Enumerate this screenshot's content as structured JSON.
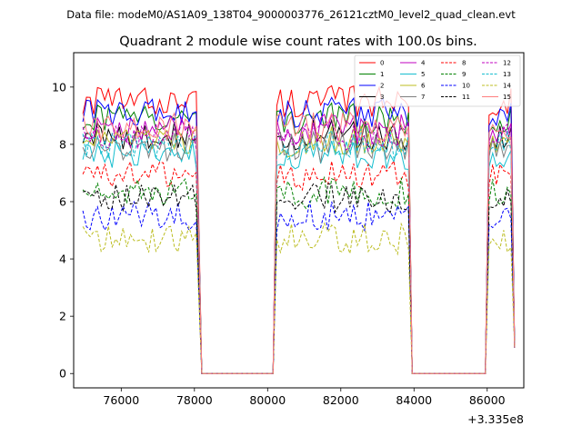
{
  "figure": {
    "suptitle": "Data file: modeM0/AS1A09_138T04_9000003776_26121cztM0_level2_quad_clean.evt",
    "offset_label": "+3.335e8"
  },
  "chart_data": {
    "type": "line",
    "title": "Quadrant 2 module wise count rates with 100.0s bins.",
    "xlabel": "",
    "ylabel": "",
    "x_offset": 333500000,
    "xlim": [
      74700,
      87000
    ],
    "ylim": [
      -0.5,
      11.2
    ],
    "x_ticks": [
      76000,
      78000,
      80000,
      82000,
      84000,
      86000
    ],
    "y_ticks": [
      0,
      2,
      4,
      6,
      8,
      10
    ],
    "x_tick_labels": [
      "76000",
      "78000",
      "80000",
      "82000",
      "84000",
      "86000"
    ],
    "y_tick_labels": [
      "0",
      "2",
      "4",
      "6",
      "8",
      "10"
    ],
    "grid": false,
    "legend_position": "top-right",
    "active_segments": [
      [
        74950,
        78050
      ],
      [
        80250,
        83850
      ],
      [
        86050,
        86750
      ]
    ],
    "gap_x": [
      78200,
      80150,
      83950,
      85950
    ],
    "series": [
      {
        "name": "0",
        "color": "#ff0000",
        "dash": "solid",
        "level": 9.5
      },
      {
        "name": "1",
        "color": "#008000",
        "dash": "solid",
        "level": 8.9
      },
      {
        "name": "2",
        "color": "#0000ff",
        "dash": "solid",
        "level": 9.1
      },
      {
        "name": "3",
        "color": "#000000",
        "dash": "solid",
        "level": 8.3
      },
      {
        "name": "4",
        "color": "#bf00bf",
        "dash": "solid",
        "level": 8.5
      },
      {
        "name": "5",
        "color": "#17becf",
        "dash": "solid",
        "level": 7.6
      },
      {
        "name": "6",
        "color": "#bcbd22",
        "dash": "solid",
        "level": 8.1
      },
      {
        "name": "7",
        "color": "#7f7f7f",
        "dash": "solid",
        "level": 7.9
      },
      {
        "name": "8",
        "color": "#ff0000",
        "dash": "dashed",
        "level": 6.9
      },
      {
        "name": "9",
        "color": "#008000",
        "dash": "dashed",
        "level": 6.3
      },
      {
        "name": "10",
        "color": "#0000ff",
        "dash": "dashed",
        "level": 5.5
      },
      {
        "name": "11",
        "color": "#000000",
        "dash": "dashed",
        "level": 6.1
      },
      {
        "name": "12",
        "color": "#bf00bf",
        "dash": "dashed",
        "level": 8.3
      },
      {
        "name": "13",
        "color": "#17becf",
        "dash": "dashed",
        "level": 8.0
      },
      {
        "name": "14",
        "color": "#bcbd22",
        "dash": "dashed",
        "level": 4.7
      },
      {
        "name": "15",
        "color": "#ff7f7f",
        "dash": "solid",
        "level": 8.6
      }
    ]
  }
}
